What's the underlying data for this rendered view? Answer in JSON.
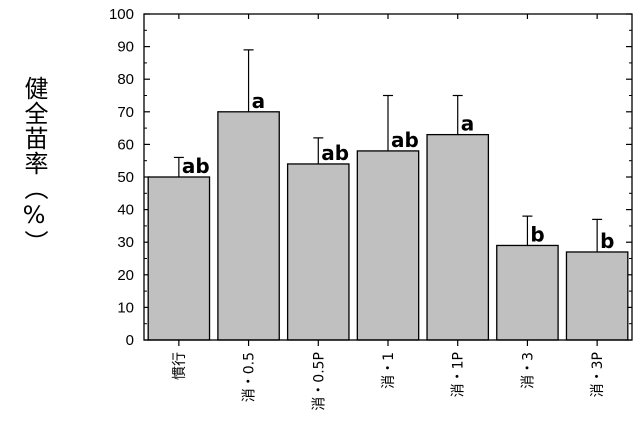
{
  "chart_data": {
    "type": "bar",
    "ylabel": "健全苗率（%）",
    "ylim": [
      0,
      100
    ],
    "yticks": [
      0,
      10,
      20,
      30,
      40,
      50,
      60,
      70,
      80,
      90,
      100
    ],
    "categories": [
      "慣行",
      "消・0.5",
      "消・0.5P",
      "消・1",
      "消・1P",
      "消・3",
      "消・3P"
    ],
    "values": [
      50,
      70,
      54,
      58,
      63,
      29,
      27
    ],
    "error": [
      6,
      19,
      8,
      17,
      12,
      9,
      10
    ],
    "labels": [
      "ab",
      "a",
      "ab",
      "ab",
      "a",
      "b",
      "b"
    ],
    "bar_color": "#c0c0c0",
    "grid": false
  }
}
